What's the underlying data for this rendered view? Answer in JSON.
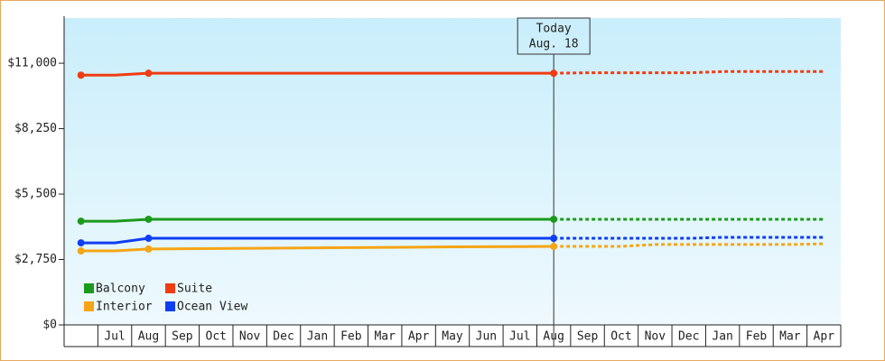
{
  "chart_data": {
    "type": "line",
    "categories": [
      null,
      "Jul",
      "Aug",
      "Sep",
      "Oct",
      "Nov",
      "Dec",
      "Jan",
      "Feb",
      "Mar",
      "Apr",
      "May",
      "Jun",
      "Jul",
      "Aug",
      "Sep",
      "Oct",
      "Nov",
      "Dec",
      "Jan",
      "Feb",
      "Mar",
      "Apr"
    ],
    "series": [
      {
        "name": "Balcony",
        "color": "#1c9a1c",
        "values": [
          4360,
          4360,
          4440,
          4440,
          4440,
          4440,
          4440,
          4440,
          4440,
          4440,
          4440,
          4440,
          4440,
          4440,
          4440,
          4440,
          4440,
          4440,
          4440,
          4440,
          4440,
          4440,
          4440
        ]
      },
      {
        "name": "Suite",
        "color": "#f03c12",
        "values": [
          10500,
          10500,
          10580,
          10580,
          10580,
          10580,
          10580,
          10580,
          10580,
          10580,
          10580,
          10580,
          10580,
          10580,
          10580,
          10600,
          10600,
          10600,
          10600,
          10650,
          10650,
          10650,
          10650
        ]
      },
      {
        "name": "Interior",
        "color": "#f5a516",
        "values": [
          3110,
          3110,
          3190,
          3200,
          3210,
          3220,
          3230,
          3240,
          3250,
          3260,
          3270,
          3280,
          3285,
          3290,
          3300,
          3300,
          3300,
          3380,
          3380,
          3380,
          3380,
          3380,
          3410
        ]
      },
      {
        "name": "Ocean View",
        "color": "#0f3ff2",
        "values": [
          3450,
          3450,
          3640,
          3640,
          3640,
          3640,
          3640,
          3640,
          3640,
          3640,
          3640,
          3640,
          3640,
          3640,
          3640,
          3640,
          3640,
          3640,
          3640,
          3680,
          3680,
          3680,
          3680
        ]
      }
    ],
    "ylim": [
      0,
      12900
    ],
    "yticks": [
      {
        "value": 0,
        "label": "$0"
      },
      {
        "value": 2750,
        "label": "$2,750"
      },
      {
        "value": 5500,
        "label": "$5,500"
      },
      {
        "value": 8250,
        "label": "$8,250"
      },
      {
        "value": 11000,
        "label": "$11,000"
      }
    ],
    "today": {
      "label": "Today",
      "date": "Aug. 18"
    },
    "legend": "lower left"
  }
}
